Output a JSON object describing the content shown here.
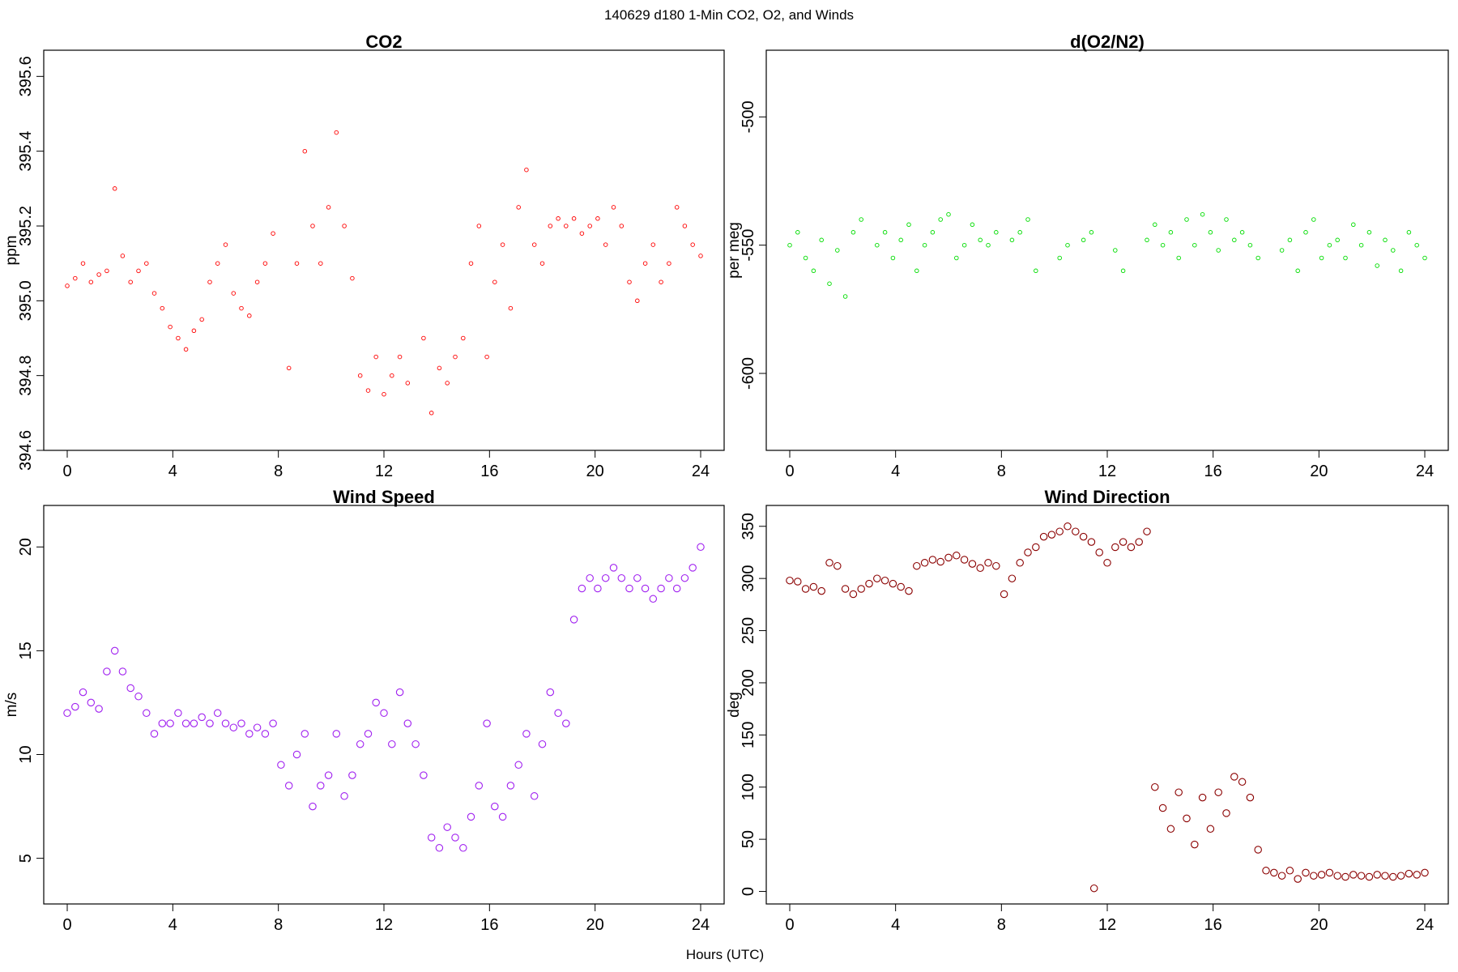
{
  "suptitle": "140629   d180   1-Min CO2, O2, and Winds",
  "xlabel": "Hours (UTC)",
  "chart_data": [
    {
      "type": "scatter",
      "title": "CO2",
      "xlabel": "",
      "ylabel": "ppm",
      "color": "#ff0000",
      "marker": "open-circle-small",
      "xlim": [
        0,
        24
      ],
      "ylim": [
        394.6,
        395.67
      ],
      "xticks": [
        "0",
        "4",
        "8",
        "12",
        "16",
        "20",
        "24"
      ],
      "yticks": [
        "394.6",
        "394.8",
        "395.0",
        "395.2",
        "395.4",
        "395.6"
      ],
      "x": [
        0,
        0.3,
        0.6,
        0.9,
        1.2,
        1.5,
        1.8,
        2.1,
        2.4,
        2.7,
        3.0,
        3.3,
        3.6,
        3.9,
        4.2,
        4.5,
        4.8,
        5.1,
        5.4,
        5.7,
        6.0,
        6.3,
        6.6,
        6.9,
        7.2,
        7.5,
        7.8,
        8.4,
        8.7,
        9.0,
        9.3,
        9.6,
        9.9,
        10.2,
        10.5,
        10.8,
        11.1,
        11.4,
        11.7,
        12.0,
        12.3,
        12.6,
        12.9,
        13.5,
        13.8,
        14.1,
        14.4,
        14.7,
        15.0,
        15.3,
        15.6,
        15.9,
        16.2,
        16.5,
        16.8,
        17.1,
        17.4,
        17.7,
        18.0,
        18.3,
        18.6,
        18.9,
        19.2,
        19.5,
        19.8,
        20.1,
        20.4,
        20.7,
        21.0,
        21.3,
        21.6,
        21.9,
        22.2,
        22.5,
        22.8,
        23.1,
        23.4,
        23.7,
        24.0
      ],
      "y": [
        395.04,
        395.06,
        395.1,
        395.05,
        395.07,
        395.08,
        395.3,
        395.12,
        395.05,
        395.08,
        395.1,
        395.02,
        394.98,
        394.93,
        394.9,
        394.87,
        394.92,
        394.95,
        395.05,
        395.1,
        395.15,
        395.02,
        394.98,
        394.96,
        395.05,
        395.1,
        395.18,
        394.82,
        395.1,
        395.4,
        395.2,
        395.1,
        395.25,
        395.45,
        395.2,
        395.06,
        394.8,
        394.76,
        394.85,
        394.75,
        394.8,
        394.85,
        394.78,
        394.9,
        394.7,
        394.82,
        394.78,
        394.85,
        394.9,
        395.1,
        395.2,
        394.85,
        395.05,
        395.15,
        394.98,
        395.25,
        395.35,
        395.15,
        395.1,
        395.2,
        395.22,
        395.2,
        395.22,
        395.18,
        395.2,
        395.22,
        395.15,
        395.25,
        395.2,
        395.05,
        395.0,
        395.1,
        395.15,
        395.05,
        395.1,
        395.25,
        395.2,
        395.15,
        395.12
      ]
    },
    {
      "type": "scatter",
      "title": "d(O2/N2)",
      "xlabel": "",
      "ylabel": "per meg",
      "color": "#00dd00",
      "marker": "open-circle-small",
      "xlim": [
        0,
        24
      ],
      "ylim": [
        -630,
        -474
      ],
      "xticks": [
        "0",
        "4",
        "8",
        "12",
        "16",
        "20",
        "24"
      ],
      "yticks": [
        "-600",
        "-550",
        "-500"
      ],
      "x": [
        0,
        0.3,
        0.6,
        0.9,
        1.2,
        1.5,
        1.8,
        2.1,
        2.4,
        2.7,
        3.3,
        3.6,
        3.9,
        4.2,
        4.5,
        4.8,
        5.1,
        5.4,
        5.7,
        6.0,
        6.3,
        6.6,
        6.9,
        7.2,
        7.5,
        7.8,
        8.4,
        8.7,
        9.0,
        9.3,
        10.2,
        10.5,
        11.1,
        11.4,
        12.3,
        12.6,
        13.5,
        13.8,
        14.1,
        14.4,
        14.7,
        15.0,
        15.3,
        15.6,
        15.9,
        16.2,
        16.5,
        16.8,
        17.1,
        17.4,
        17.7,
        18.6,
        18.9,
        19.2,
        19.5,
        19.8,
        20.1,
        20.4,
        20.7,
        21.0,
        21.3,
        21.6,
        21.9,
        22.2,
        22.5,
        22.8,
        23.1,
        23.4,
        23.7,
        24.0
      ],
      "y": [
        -550,
        -545,
        -555,
        -560,
        -548,
        -565,
        -552,
        -570,
        -545,
        -540,
        -550,
        -545,
        -555,
        -548,
        -542,
        -560,
        -550,
        -545,
        -540,
        -538,
        -555,
        -550,
        -542,
        -548,
        -550,
        -545,
        -548,
        -545,
        -540,
        -560,
        -555,
        -550,
        -548,
        -545,
        -552,
        -560,
        -548,
        -542,
        -550,
        -545,
        -555,
        -540,
        -550,
        -538,
        -545,
        -552,
        -540,
        -548,
        -545,
        -550,
        -555,
        -552,
        -548,
        -560,
        -545,
        -540,
        -555,
        -550,
        -548,
        -555,
        -542,
        -550,
        -545,
        -558,
        -548,
        -552,
        -560,
        -545,
        -550,
        -555
      ]
    },
    {
      "type": "scatter",
      "title": "Wind Speed",
      "xlabel": "",
      "ylabel": "m/s",
      "color": "#a020f0",
      "marker": "open-circle",
      "xlim": [
        0,
        24
      ],
      "ylim": [
        2.8,
        22.0
      ],
      "xticks": [
        "0",
        "4",
        "8",
        "12",
        "16",
        "20",
        "24"
      ],
      "yticks": [
        "5",
        "10",
        "15",
        "20"
      ],
      "x": [
        0,
        0.3,
        0.6,
        0.9,
        1.2,
        1.5,
        1.8,
        2.1,
        2.4,
        2.7,
        3.0,
        3.3,
        3.6,
        3.9,
        4.2,
        4.5,
        4.8,
        5.1,
        5.4,
        5.7,
        6.0,
        6.3,
        6.6,
        6.9,
        7.2,
        7.5,
        7.8,
        8.1,
        8.4,
        8.7,
        9.0,
        9.3,
        9.6,
        9.9,
        10.2,
        10.5,
        10.8,
        11.1,
        11.4,
        11.7,
        12.0,
        12.3,
        12.6,
        12.9,
        13.2,
        13.5,
        13.8,
        14.1,
        14.4,
        14.7,
        15.0,
        15.3,
        15.6,
        15.9,
        16.2,
        16.5,
        16.8,
        17.1,
        17.4,
        17.7,
        18.0,
        18.3,
        18.6,
        18.9,
        19.2,
        19.5,
        19.8,
        20.1,
        20.4,
        20.7,
        21.0,
        21.3,
        21.6,
        21.9,
        22.2,
        22.5,
        22.8,
        23.1,
        23.4,
        23.7,
        24.0
      ],
      "y": [
        12.0,
        12.3,
        13.0,
        12.5,
        12.2,
        14.0,
        15.0,
        14.0,
        13.2,
        12.8,
        12.0,
        11.0,
        11.5,
        11.5,
        12.0,
        11.5,
        11.5,
        11.8,
        11.5,
        12.0,
        11.5,
        11.3,
        11.5,
        11.0,
        11.3,
        11.0,
        11.5,
        9.5,
        8.5,
        10.0,
        11.0,
        7.5,
        8.5,
        9.0,
        11.0,
        8.0,
        9.0,
        10.5,
        11.0,
        12.5,
        12.0,
        10.5,
        13.0,
        11.5,
        10.5,
        9.0,
        6.0,
        5.5,
        6.5,
        6.0,
        5.5,
        7.0,
        8.5,
        11.5,
        7.5,
        7.0,
        8.5,
        9.5,
        11.0,
        8.0,
        10.5,
        13.0,
        12.0,
        11.5,
        16.5,
        18.0,
        18.5,
        18.0,
        18.5,
        19.0,
        18.5,
        18.0,
        18.5,
        18.0,
        17.5,
        18.0,
        18.5,
        18.0,
        18.5,
        19.0,
        20.0
      ]
    },
    {
      "type": "scatter",
      "title": "Wind Direction",
      "xlabel": "",
      "ylabel": "deg",
      "color": "#8b0000",
      "marker": "open-circle",
      "xlim": [
        0,
        24
      ],
      "ylim": [
        -12,
        370
      ],
      "xticks": [
        "0",
        "4",
        "8",
        "12",
        "16",
        "20",
        "24"
      ],
      "yticks": [
        "0",
        "50",
        "100",
        "150",
        "200",
        "250",
        "300",
        "350"
      ],
      "x": [
        0,
        0.3,
        0.6,
        0.9,
        1.2,
        1.5,
        1.8,
        2.1,
        2.4,
        2.7,
        3.0,
        3.3,
        3.6,
        3.9,
        4.2,
        4.5,
        4.8,
        5.1,
        5.4,
        5.7,
        6.0,
        6.3,
        6.6,
        6.9,
        7.2,
        7.5,
        7.8,
        8.1,
        8.4,
        8.7,
        9.0,
        9.3,
        9.6,
        9.9,
        10.2,
        10.5,
        10.8,
        11.1,
        11.4,
        11.7,
        12.0,
        12.3,
        12.6,
        12.9,
        13.2,
        13.5,
        11.5,
        13.8,
        14.1,
        14.4,
        14.7,
        15.0,
        15.3,
        15.6,
        15.9,
        16.2,
        16.5,
        16.8,
        17.1,
        17.4,
        17.7,
        18.0,
        18.3,
        18.6,
        18.9,
        19.2,
        19.5,
        19.8,
        20.1,
        20.4,
        20.7,
        21.0,
        21.3,
        21.6,
        21.9,
        22.2,
        22.5,
        22.8,
        23.1,
        23.4,
        23.7,
        24.0
      ],
      "y": [
        298,
        297,
        290,
        292,
        288,
        315,
        312,
        290,
        285,
        290,
        295,
        300,
        298,
        295,
        292,
        288,
        312,
        315,
        318,
        316,
        320,
        322,
        318,
        314,
        310,
        315,
        312,
        285,
        300,
        315,
        325,
        330,
        340,
        342,
        345,
        350,
        345,
        340,
        335,
        325,
        315,
        330,
        335,
        330,
        335,
        345,
        3,
        100,
        80,
        60,
        95,
        70,
        45,
        90,
        60,
        95,
        75,
        110,
        105,
        90,
        40,
        20,
        18,
        15,
        20,
        12,
        18,
        15,
        16,
        18,
        15,
        14,
        16,
        15,
        14,
        16,
        15,
        14,
        15,
        17,
        16,
        18
      ]
    }
  ]
}
